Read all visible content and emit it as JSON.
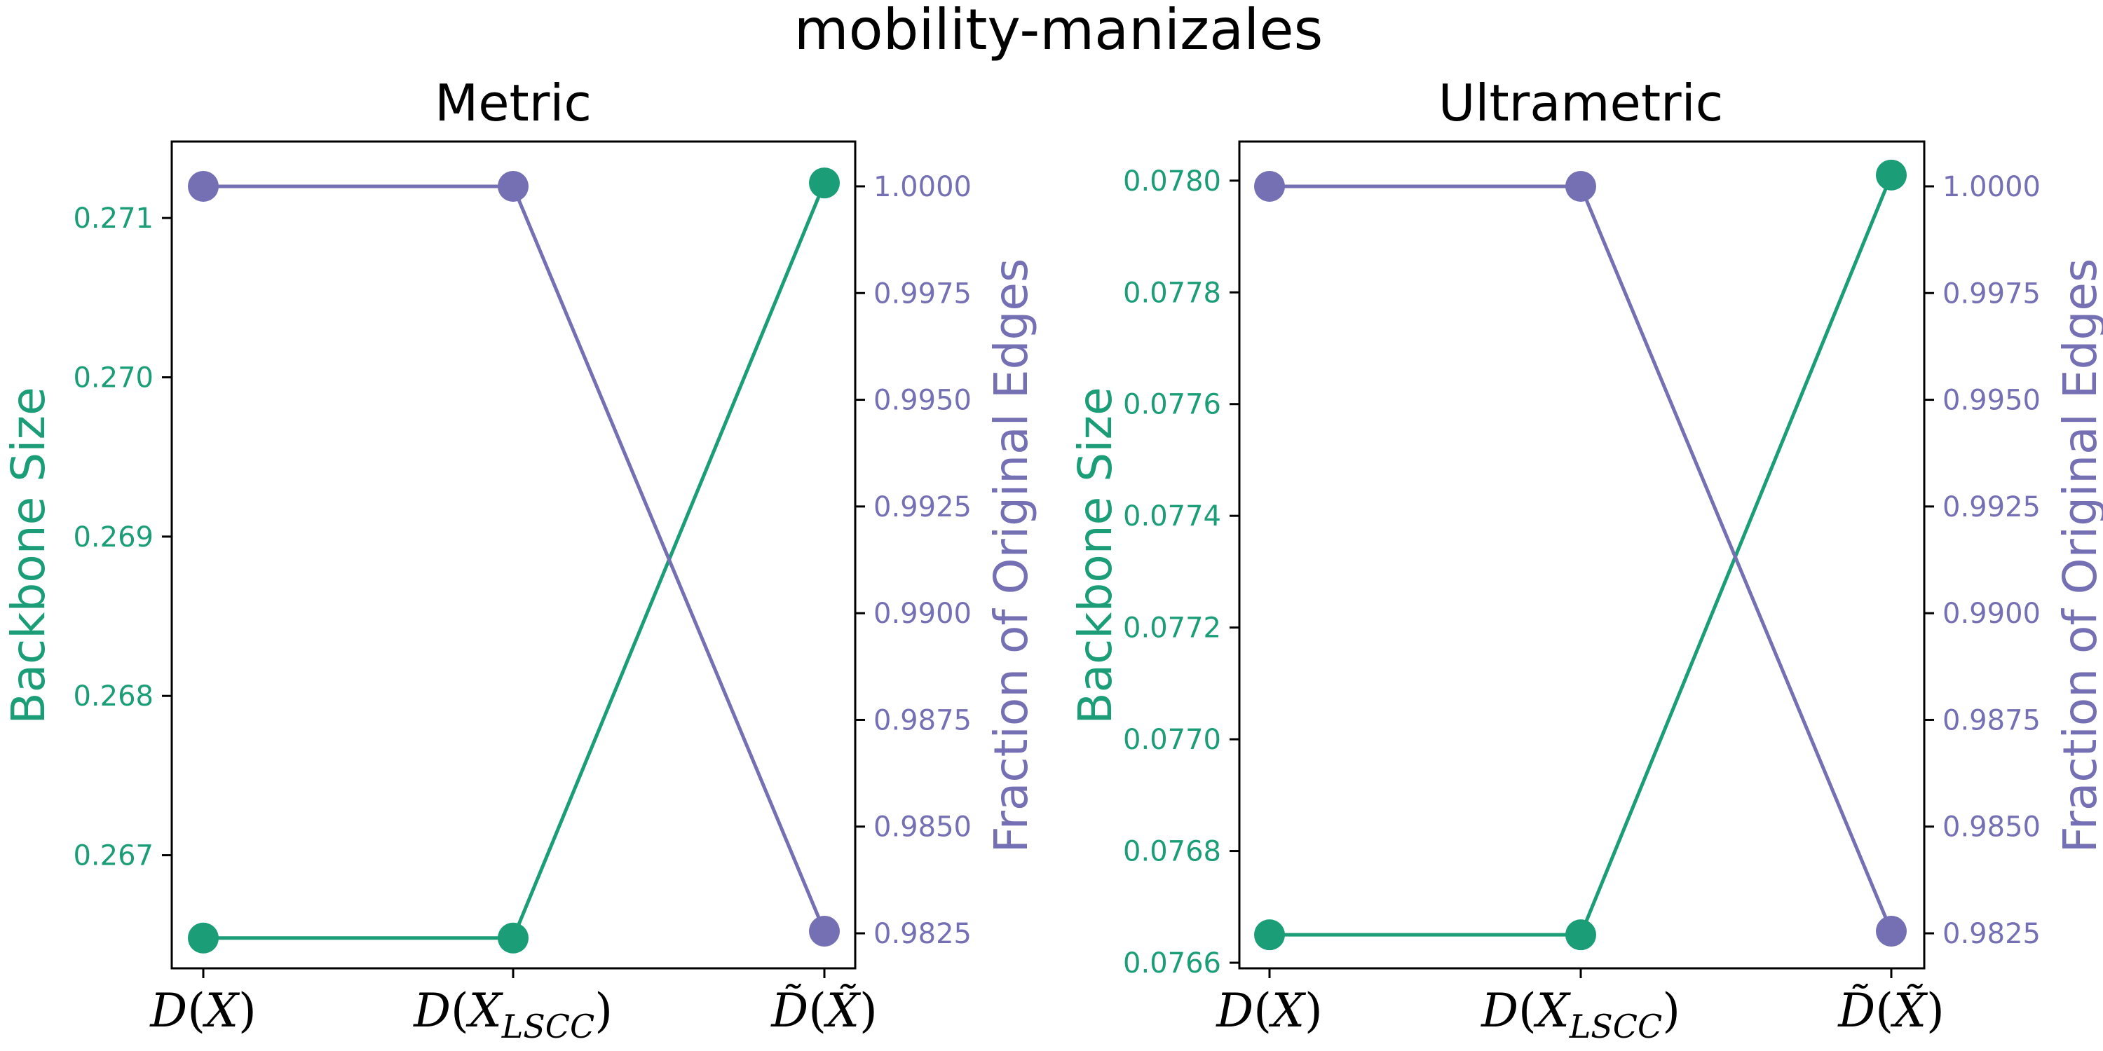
{
  "figure": {
    "suptitle": "mobility-manizales"
  },
  "colors": {
    "backbone": "#1b9e77",
    "fraction": "#7570b3"
  },
  "chart_data": [
    {
      "type": "line",
      "title": "Metric",
      "categories": [
        "D(X)",
        "D(X_LSCC)",
        "D̃(X̃)"
      ],
      "xlabel": "",
      "ylabel": "Backbone Size",
      "y2label": "Fraction of Original Edges",
      "ylim": [
        0.26629,
        0.27148
      ],
      "y2lim": [
        0.98168,
        1.00105
      ],
      "yticks": [
        "0.267",
        "0.268",
        "0.269",
        "0.270",
        "0.271"
      ],
      "y2ticks": [
        "0.9825",
        "0.9850",
        "0.9875",
        "0.9900",
        "0.9925",
        "0.9950",
        "0.9975",
        "1.0000"
      ],
      "grid": false,
      "series": [
        {
          "name": "",
          "axis": "left",
          "values": [
            0.26648,
            0.26648,
            0.27122
          ]
        },
        {
          "name": "",
          "axis": "right",
          "values": [
            1.0,
            1.0,
            0.98255
          ]
        }
      ]
    },
    {
      "type": "line",
      "title": "Ultrametric",
      "categories": [
        "D(X)",
        "D(X_LSCC)",
        "D̃(X̃)"
      ],
      "xlabel": "",
      "ylabel": "Backbone Size",
      "y2label": "Fraction of Original Edges",
      "ylim": [
        0.07659,
        0.07807
      ],
      "y2lim": [
        0.98168,
        1.00105
      ],
      "yticks": [
        "0.0766",
        "0.0768",
        "0.0770",
        "0.0772",
        "0.0774",
        "0.0776",
        "0.0778",
        "0.0780"
      ],
      "y2ticks": [
        "0.9825",
        "0.9850",
        "0.9875",
        "0.9900",
        "0.9925",
        "0.9950",
        "0.9975",
        "1.0000"
      ],
      "grid": false,
      "series": [
        {
          "name": "",
          "axis": "left",
          "values": [
            0.07665,
            0.07665,
            0.07801
          ]
        },
        {
          "name": "",
          "axis": "right",
          "values": [
            1.0,
            1.0,
            0.98255
          ]
        }
      ]
    }
  ]
}
